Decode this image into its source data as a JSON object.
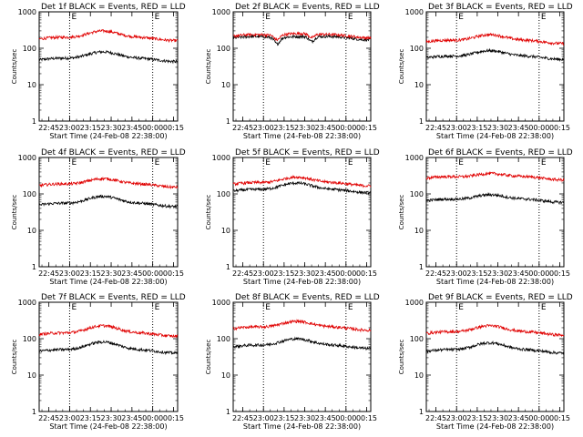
{
  "figure": {
    "background": "#ffffff",
    "events_color": "#000000",
    "lld_color": "#e00000"
  },
  "chart_data": [
    {
      "type": "line",
      "title": "Det 1f BLACK = Events, RED = LLD",
      "xlabel": "Start Time (24-Feb-08 22:38:00)",
      "ylabel": "Counts/sec",
      "yscale": "log",
      "ylim": [
        1,
        1000
      ],
      "yticks": [
        "1",
        "10",
        "100",
        "1000"
      ],
      "xticks": [
        "22:45",
        "23:00",
        "23:15",
        "23:30",
        "23:45",
        "00:00",
        "00:15"
      ],
      "xlim_minutes_from_start": [
        0,
        100
      ],
      "vertical_dotted_lines_minutes": [
        22,
        82
      ],
      "markers": [
        "E",
        "E"
      ],
      "series": [
        {
          "color": "#000000",
          "base": 48,
          "peak": 88,
          "peak_minute": 45,
          "dip": 0,
          "dip_minute": 40
        },
        {
          "color": "#e00000",
          "base": 180,
          "peak": 330,
          "peak_minute": 45,
          "dip": 0,
          "dip_minute": 40
        }
      ]
    },
    {
      "type": "line",
      "title": "Det 2f BLACK = Events, RED = LLD",
      "xlabel": "Start Time (24-Feb-08 22:38:00)",
      "ylabel": "Counts/sec",
      "yscale": "log",
      "ylim": [
        1,
        1000
      ],
      "yticks": [
        "1",
        "10",
        "100",
        "1000"
      ],
      "xticks": [
        "22:45",
        "23:00",
        "23:15",
        "23:30",
        "23:45",
        "00:00",
        "00:15"
      ],
      "xlim_minutes_from_start": [
        0,
        100
      ],
      "vertical_dotted_lines_minutes": [
        22,
        82
      ],
      "markers": [
        "E",
        "E"
      ],
      "series": [
        {
          "color": "#000000",
          "base": 190,
          "peak": 230,
          "peak_minute": 45,
          "dip": 120,
          "dip_minute": 32
        },
        {
          "color": "#e00000",
          "base": 215,
          "peak": 280,
          "peak_minute": 45,
          "dip": 150,
          "dip_minute": 32
        }
      ]
    },
    {
      "type": "line",
      "title": "Det 3f BLACK = Events, RED = LLD",
      "xlabel": "Start Time (24-Feb-08 22:38:00)",
      "ylabel": "Counts/sec",
      "yscale": "log",
      "ylim": [
        1,
        1000
      ],
      "yticks": [
        "1",
        "10",
        "100",
        "1000"
      ],
      "xticks": [
        "22:45",
        "23:00",
        "23:15",
        "23:30",
        "23:45",
        "00:00",
        "00:15"
      ],
      "xlim_minutes_from_start": [
        0,
        100
      ],
      "vertical_dotted_lines_minutes": [
        22,
        82
      ],
      "markers": [
        "E",
        "E"
      ],
      "series": [
        {
          "color": "#000000",
          "base": 55,
          "peak": 95,
          "peak_minute": 45,
          "dip": 0,
          "dip_minute": 40
        },
        {
          "color": "#e00000",
          "base": 150,
          "peak": 260,
          "peak_minute": 45,
          "dip": 0,
          "dip_minute": 40
        }
      ]
    },
    {
      "type": "line",
      "title": "Det 4f BLACK = Events, RED = LLD",
      "xlabel": "Start Time (24-Feb-08 22:38:00)",
      "ylabel": "Counts/sec",
      "yscale": "log",
      "ylim": [
        1,
        1000
      ],
      "yticks": [
        "1",
        "10",
        "100",
        "1000"
      ],
      "xticks": [
        "22:45",
        "23:00",
        "23:15",
        "23:30",
        "23:45",
        "00:00",
        "00:15"
      ],
      "xlim_minutes_from_start": [
        0,
        100
      ],
      "vertical_dotted_lines_minutes": [
        22,
        82
      ],
      "markers": [
        "E",
        "E"
      ],
      "series": [
        {
          "color": "#000000",
          "base": 50,
          "peak": 95,
          "peak_minute": 45,
          "dip": 0,
          "dip_minute": 40
        },
        {
          "color": "#e00000",
          "base": 170,
          "peak": 290,
          "peak_minute": 45,
          "dip": 0,
          "dip_minute": 40
        }
      ]
    },
    {
      "type": "line",
      "title": "Det 5f BLACK = Events, RED = LLD",
      "xlabel": "Start Time (24-Feb-08 22:38:00)",
      "ylabel": "Counts/sec",
      "yscale": "log",
      "ylim": [
        1,
        1000
      ],
      "yticks": [
        "1",
        "10",
        "100",
        "1000"
      ],
      "xticks": [
        "22:45",
        "23:00",
        "23:15",
        "23:30",
        "23:45",
        "00:00",
        "00:15"
      ],
      "xlim_minutes_from_start": [
        0,
        100
      ],
      "vertical_dotted_lines_minutes": [
        22,
        82
      ],
      "markers": [
        "E",
        "E"
      ],
      "series": [
        {
          "color": "#000000",
          "base": 120,
          "peak": 220,
          "peak_minute": 45,
          "dip": 0,
          "dip_minute": 40
        },
        {
          "color": "#e00000",
          "base": 185,
          "peak": 320,
          "peak_minute": 45,
          "dip": 0,
          "dip_minute": 40
        }
      ]
    },
    {
      "type": "line",
      "title": "Det 6f BLACK = Events, RED = LLD",
      "xlabel": "Start Time (24-Feb-08 22:38:00)",
      "ylabel": "Counts/sec",
      "yscale": "log",
      "ylim": [
        1,
        1000
      ],
      "yticks": [
        "1",
        "10",
        "100",
        "1000"
      ],
      "xticks": [
        "22:45",
        "23:00",
        "23:15",
        "23:30",
        "23:45",
        "00:00",
        "00:15"
      ],
      "xlim_minutes_from_start": [
        0,
        100
      ],
      "vertical_dotted_lines_minutes": [
        22,
        82
      ],
      "markers": [
        "E",
        "E"
      ],
      "series": [
        {
          "color": "#000000",
          "base": 65,
          "peak": 105,
          "peak_minute": 45,
          "dip": 0,
          "dip_minute": 40
        },
        {
          "color": "#e00000",
          "base": 270,
          "peak": 400,
          "peak_minute": 45,
          "dip": 0,
          "dip_minute": 40
        }
      ]
    },
    {
      "type": "line",
      "title": "Det 7f BLACK = Events, RED = LLD",
      "xlabel": "Start Time (24-Feb-08 22:38:00)",
      "ylabel": "Counts/sec",
      "yscale": "log",
      "ylim": [
        1,
        1000
      ],
      "yticks": [
        "1",
        "10",
        "100",
        "1000"
      ],
      "xticks": [
        "22:45",
        "23:00",
        "23:15",
        "23:30",
        "23:45",
        "00:00",
        "00:15"
      ],
      "xlim_minutes_from_start": [
        0,
        100
      ],
      "vertical_dotted_lines_minutes": [
        22,
        82
      ],
      "markers": [
        "E",
        "E"
      ],
      "series": [
        {
          "color": "#000000",
          "base": 45,
          "peak": 90,
          "peak_minute": 45,
          "dip": 0,
          "dip_minute": 40
        },
        {
          "color": "#e00000",
          "base": 130,
          "peak": 250,
          "peak_minute": 45,
          "dip": 0,
          "dip_minute": 40
        }
      ]
    },
    {
      "type": "line",
      "title": "Det 8f BLACK = Events, RED = LLD",
      "xlabel": "Start Time (24-Feb-08 22:38:00)",
      "ylabel": "Counts/sec",
      "yscale": "log",
      "ylim": [
        1,
        1000
      ],
      "yticks": [
        "1",
        "10",
        "100",
        "1000"
      ],
      "xticks": [
        "22:45",
        "23:00",
        "23:15",
        "23:30",
        "23:45",
        "00:00",
        "00:15"
      ],
      "xlim_minutes_from_start": [
        0,
        100
      ],
      "vertical_dotted_lines_minutes": [
        22,
        82
      ],
      "markers": [
        "E",
        "E"
      ],
      "series": [
        {
          "color": "#000000",
          "base": 60,
          "peak": 110,
          "peak_minute": 45,
          "dip": 0,
          "dip_minute": 40
        },
        {
          "color": "#e00000",
          "base": 190,
          "peak": 330,
          "peak_minute": 45,
          "dip": 0,
          "dip_minute": 40
        }
      ]
    },
    {
      "type": "line",
      "title": "Det 9f BLACK = Events, RED = LLD",
      "xlabel": "Start Time (24-Feb-08 22:38:00)",
      "ylabel": "Counts/sec",
      "yscale": "log",
      "ylim": [
        1,
        1000
      ],
      "yticks": [
        "1",
        "10",
        "100",
        "1000"
      ],
      "xticks": [
        "22:45",
        "23:00",
        "23:15",
        "23:30",
        "23:45",
        "00:00",
        "00:15"
      ],
      "xlim_minutes_from_start": [
        0,
        100
      ],
      "vertical_dotted_lines_minutes": [
        22,
        82
      ],
      "markers": [
        "E",
        "E"
      ],
      "series": [
        {
          "color": "#000000",
          "base": 45,
          "peak": 85,
          "peak_minute": 45,
          "dip": 0,
          "dip_minute": 40
        },
        {
          "color": "#e00000",
          "base": 140,
          "peak": 250,
          "peak_minute": 45,
          "dip": 0,
          "dip_minute": 40
        }
      ]
    }
  ]
}
